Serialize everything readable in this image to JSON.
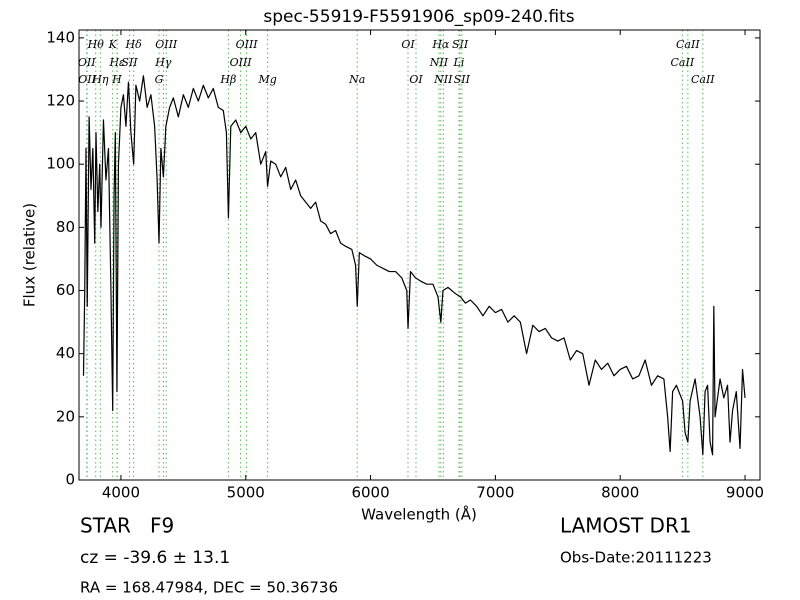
{
  "chart_data": {
    "type": "line",
    "title": "spec-55919-F5591906_sp09-240.fits",
    "xlabel": "Wavelength (Å)",
    "ylabel": "Flux (relative)",
    "xlim": [
      3664,
      9120
    ],
    "ylim": [
      0,
      142.5
    ],
    "xticks": [
      4000,
      5000,
      6000,
      7000,
      8000,
      9000
    ],
    "yticks": [
      0,
      20,
      40,
      60,
      80,
      100,
      120,
      140
    ],
    "series": [
      {
        "color": "#000000",
        "x": [
          3700,
          3710,
          3720,
          3730,
          3745,
          3760,
          3775,
          3790,
          3800,
          3815,
          3830,
          3840,
          3860,
          3880,
          3900,
          3920,
          3934,
          3945,
          3955,
          3968,
          3980,
          4000,
          4020,
          4040,
          4060,
          4080,
          4102,
          4120,
          4150,
          4180,
          4210,
          4240,
          4270,
          4290,
          4305,
          4320,
          4340,
          4360,
          4390,
          4420,
          4460,
          4500,
          4540,
          4580,
          4620,
          4660,
          4700,
          4740,
          4780,
          4820,
          4845,
          4861,
          4880,
          4920,
          4960,
          5000,
          5040,
          5080,
          5120,
          5160,
          5175,
          5200,
          5240,
          5280,
          5320,
          5360,
          5400,
          5440,
          5480,
          5520,
          5560,
          5600,
          5640,
          5680,
          5720,
          5760,
          5800,
          5850,
          5880,
          5893,
          5910,
          5950,
          6000,
          6050,
          6100,
          6150,
          6200,
          6250,
          6290,
          6300,
          6320,
          6360,
          6400,
          6450,
          6500,
          6540,
          6563,
          6580,
          6620,
          6680,
          6720,
          6760,
          6800,
          6850,
          6900,
          6950,
          7000,
          7050,
          7100,
          7150,
          7200,
          7250,
          7300,
          7350,
          7400,
          7450,
          7500,
          7550,
          7600,
          7650,
          7700,
          7750,
          7800,
          7850,
          7900,
          7950,
          8000,
          8050,
          8100,
          8150,
          8200,
          8250,
          8300,
          8350,
          8380,
          8400,
          8420,
          8450,
          8500,
          8520,
          8542,
          8560,
          8600,
          8640,
          8662,
          8680,
          8700,
          8720,
          8740,
          8750,
          8760,
          8800,
          8830,
          8860,
          8880,
          8900,
          8930,
          8960,
          8980,
          9000
        ],
        "values": [
          33,
          60,
          105,
          55,
          115,
          92,
          105,
          75,
          110,
          85,
          100,
          80,
          114,
          95,
          105,
          60,
          22,
          90,
          110,
          28,
          100,
          118,
          122,
          112,
          126,
          110,
          100,
          125,
          120,
          128,
          118,
          122,
          112,
          95,
          75,
          105,
          96,
          112,
          118,
          121,
          115,
          122,
          118,
          124,
          120,
          125,
          121,
          124,
          118,
          117,
          110,
          83,
          112,
          114,
          110,
          112,
          108,
          110,
          100,
          104,
          93,
          101,
          100,
          96,
          99,
          92,
          95,
          90,
          88,
          86,
          88,
          82,
          81,
          78,
          79,
          75,
          74,
          73,
          68,
          55,
          72,
          71,
          70,
          68,
          67,
          66,
          66,
          64,
          60,
          48,
          66,
          64,
          63,
          62,
          62,
          58,
          50,
          60,
          61,
          59,
          58,
          56,
          57,
          55,
          52,
          55,
          53,
          54,
          50,
          52,
          50,
          40,
          49,
          47,
          48,
          45,
          44,
          45,
          38,
          41,
          40,
          30,
          38,
          35,
          37,
          33,
          35,
          36,
          32,
          33,
          38,
          30,
          33,
          32,
          20,
          9,
          28,
          30,
          25,
          15,
          12,
          25,
          32,
          20,
          8,
          28,
          30,
          12,
          8,
          55,
          20,
          32,
          26,
          30,
          12,
          22,
          28,
          10,
          35,
          26
        ]
      }
    ],
    "line_color": "#5cb85c",
    "lines": [
      [
        {
          "label": "Hθ",
          "wavelength": 3798
        },
        {
          "label": "K",
          "wavelength": 3934
        },
        {
          "label": "Hδ",
          "wavelength": 4102
        },
        {
          "label": "OIII",
          "wavelength": 4363
        },
        {
          "label": "OIII",
          "wavelength": 5007
        },
        {
          "label": "OI",
          "wavelength": 6300
        },
        {
          "label": "Hα",
          "wavelength": 6563
        },
        {
          "label": "SII",
          "wavelength": 6717
        },
        {
          "label": "CaII",
          "wavelength": 8542
        }
      ],
      [
        {
          "label": "OII",
          "wavelength": 3726
        },
        {
          "label": "Hε",
          "wavelength": 3970
        },
        {
          "label": "SII",
          "wavelength": 4069
        },
        {
          "label": "Hγ",
          "wavelength": 4340
        },
        {
          "label": "OIII",
          "wavelength": 4959
        },
        {
          "label": "NII",
          "wavelength": 6548
        },
        {
          "label": "Li",
          "wavelength": 6708
        },
        {
          "label": "CaII",
          "wavelength": 8498
        }
      ],
      [
        {
          "label": "OII",
          "wavelength": 3729
        },
        {
          "label": "Hη",
          "wavelength": 3835
        },
        {
          "label": "H",
          "wavelength": 3968
        },
        {
          "label": "G",
          "wavelength": 4305
        },
        {
          "label": "Hβ",
          "wavelength": 4861
        },
        {
          "label": "Mg",
          "wavelength": 5175
        },
        {
          "label": "Na",
          "wavelength": 5893
        },
        {
          "label": "OI",
          "wavelength": 6364
        },
        {
          "label": "NII",
          "wavelength": 6583
        },
        {
          "label": "SII",
          "wavelength": 6731
        },
        {
          "label": "CaII",
          "wavelength": 8662
        }
      ]
    ],
    "annotations": {
      "object": "STAR   F9",
      "redshift": "cz = -39.6 ± 13.1",
      "coords": "RA = 168.47984, DEC = 50.36736",
      "survey": "LAMOST DR1",
      "obs_date": "Obs-Date:20111223"
    }
  }
}
